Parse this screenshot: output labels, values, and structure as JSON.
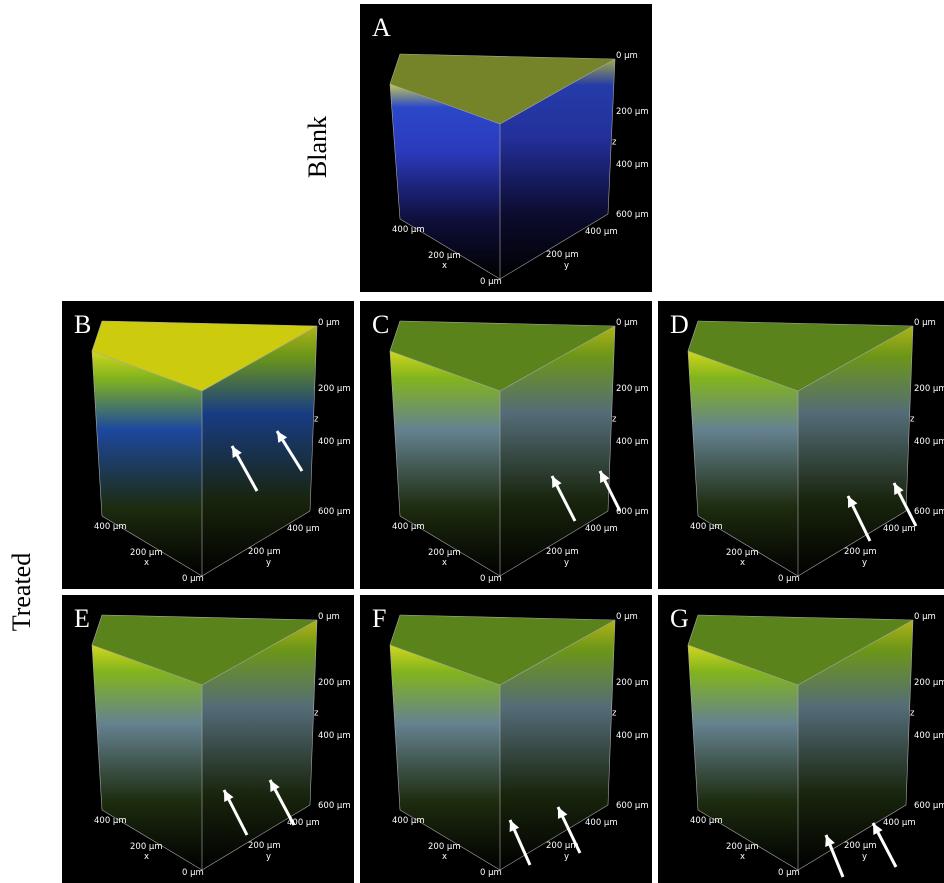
{
  "row_labels": {
    "blank": "Blank",
    "treated": "Treated"
  },
  "panels": [
    {
      "letter": "A"
    },
    {
      "letter": "B"
    },
    {
      "letter": "C"
    },
    {
      "letter": "D"
    },
    {
      "letter": "E"
    },
    {
      "letter": "F"
    },
    {
      "letter": "G"
    }
  ],
  "axes": {
    "z_ticks": [
      "0 µm",
      "200 µm",
      "400 µm",
      "600 µm"
    ],
    "z_label": "z",
    "x_ticks": [
      "400 µm",
      "200 µm"
    ],
    "x_label": "x",
    "y_ticks": [
      "400 µm",
      "200 µm"
    ],
    "y_label": "y",
    "origin": "0 µm"
  }
}
